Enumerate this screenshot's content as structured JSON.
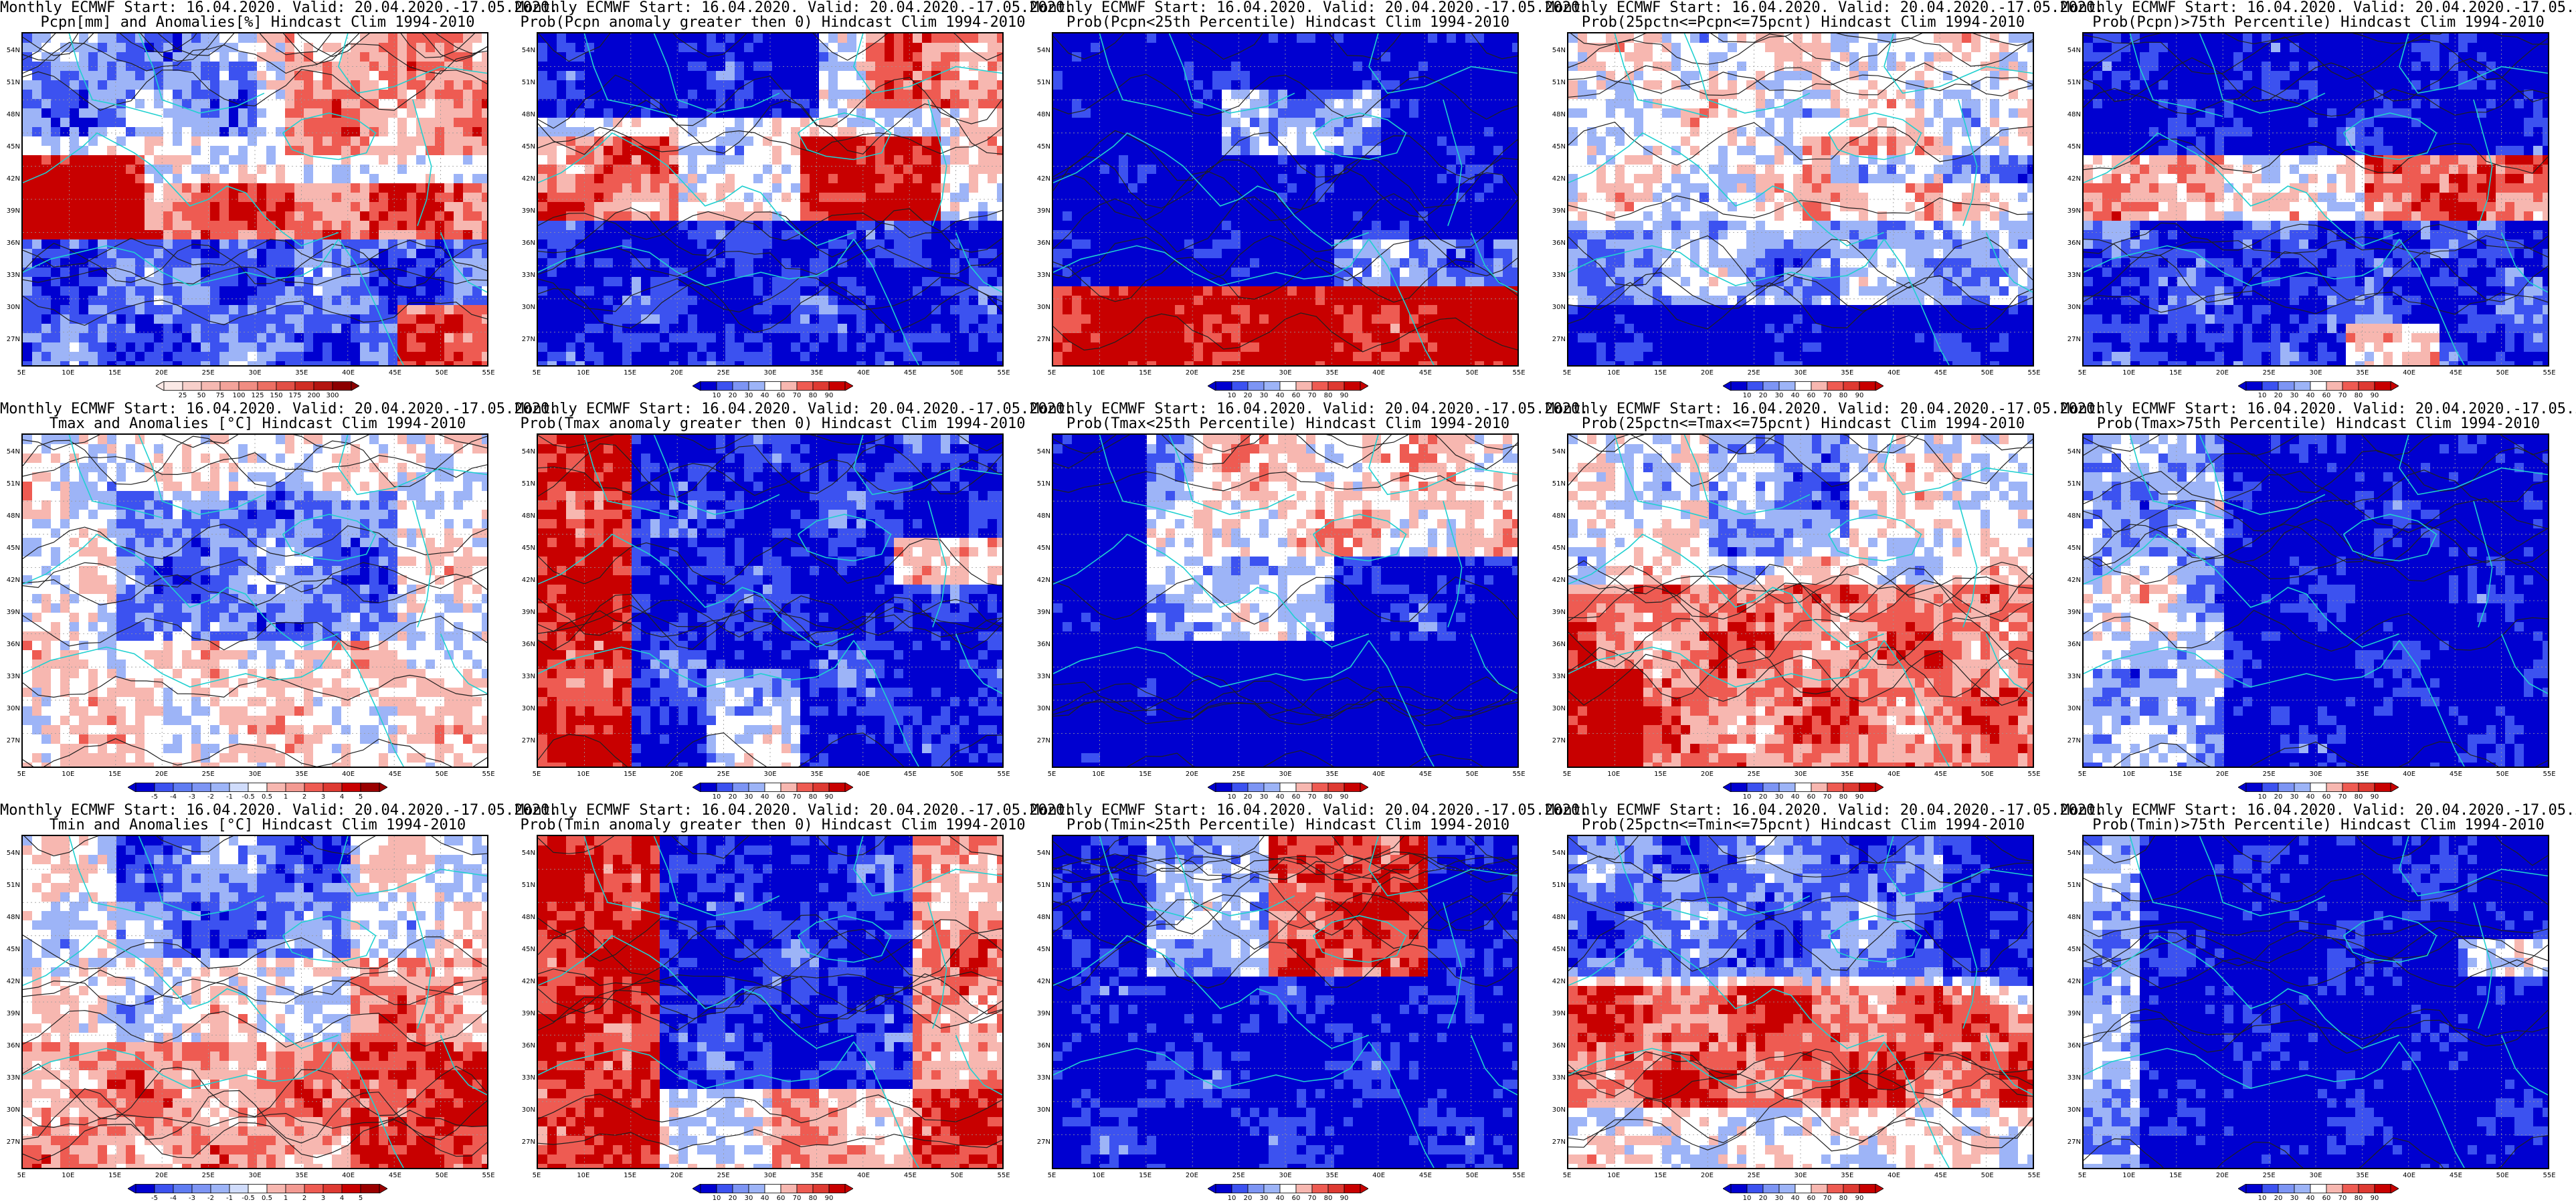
{
  "header_line": "Monthly ECMWF Start: 16.04.2020. Valid: 20.04.2020.-17.05.2020.",
  "lat_ticks": [
    "54N",
    "51N",
    "48N",
    "45N",
    "42N",
    "39N",
    "36N",
    "33N",
    "30N",
    "27N"
  ],
  "lon_ticks": [
    "5E",
    "10E",
    "15E",
    "20E",
    "25E",
    "30E",
    "35E",
    "40E",
    "45E",
    "50E",
    "55E"
  ],
  "colors": {
    "blue_dark": "#0000d0",
    "blue_mid": "#3c52f0",
    "blue_light": "#9db4f7",
    "white": "#ffffff",
    "red_light": "#f7b7b0",
    "red_mid": "#ee5b52",
    "red_dark": "#c80000",
    "coast": "#20d0d0",
    "contour": "#202020"
  },
  "scales": {
    "anom_pcp": [
      "25",
      "50",
      "75",
      "100",
      "125",
      "150",
      "175",
      "200",
      "300"
    ],
    "anom_t": [
      "-5",
      "-4",
      "-3",
      "-2",
      "-1",
      "-0.5",
      "0.5",
      "1",
      "2",
      "3",
      "4",
      "5"
    ],
    "prob": [
      "10",
      "20",
      "30",
      "40",
      "60",
      "70",
      "80",
      "90"
    ]
  },
  "panels": [
    {
      "title": "Pcpn[mm] and Anomalies[%] Hindcast Clim 1994-2010",
      "scale": "anom_pcp",
      "pattern": "pcp_anom"
    },
    {
      "title": "Prob(Pcpn anomaly greater then 0) Hindcast Clim 1994-2010",
      "scale": "prob",
      "pattern": "pcp_prob"
    },
    {
      "title": "Prob(Pcpn<25th Percentile) Hindcast Clim 1994-2010",
      "scale": "prob",
      "pattern": "pcp_low"
    },
    {
      "title": "Prob(25pctn<=Pcpn<=75pcnt) Hindcast Clim 1994-2010",
      "scale": "prob",
      "pattern": "pcp_mid"
    },
    {
      "title": "Prob(Pcpn)>75th Percentile) Hindcast Clim 1994-2010",
      "scale": "prob",
      "pattern": "pcp_high"
    },
    {
      "title": "Tmax and Anomalies [°C] Hindcast Clim 1994-2010",
      "scale": "anom_t",
      "pattern": "tmax_anom"
    },
    {
      "title": "Prob(Tmax anomaly greater then 0) Hindcast Clim 1994-2010",
      "scale": "prob",
      "pattern": "tmax_prob"
    },
    {
      "title": "Prob(Tmax<25th Percentile) Hindcast Clim 1994-2010",
      "scale": "prob",
      "pattern": "tmax_low"
    },
    {
      "title": "Prob(25pctn<=Tmax<=75pcnt) Hindcast Clim 1994-2010",
      "scale": "prob",
      "pattern": "tmax_mid"
    },
    {
      "title": "Prob(Tmax>75th Percentile) Hindcast Clim 1994-2010",
      "scale": "prob",
      "pattern": "tmax_high"
    },
    {
      "title": "Tmin and Anomalies [°C] Hindcast Clim 1994-2010",
      "scale": "anom_t",
      "pattern": "tmin_anom"
    },
    {
      "title": "Prob(Tmin anomaly greater then 0) Hindcast Clim 1994-2010",
      "scale": "prob",
      "pattern": "tmin_prob"
    },
    {
      "title": "Prob(Tmin<25th Percentile) Hindcast Clim 1994-2010",
      "scale": "prob",
      "pattern": "tmin_low"
    },
    {
      "title": "Prob(25pctn<=Tmin<=75pcnt) Hindcast Clim 1994-2010",
      "scale": "prob",
      "pattern": "tmin_mid"
    },
    {
      "title": "Prob(Tmin)>75th Percentile) Hindcast Clim 1994-2010",
      "scale": "prob",
      "pattern": "tmin_high"
    }
  ]
}
